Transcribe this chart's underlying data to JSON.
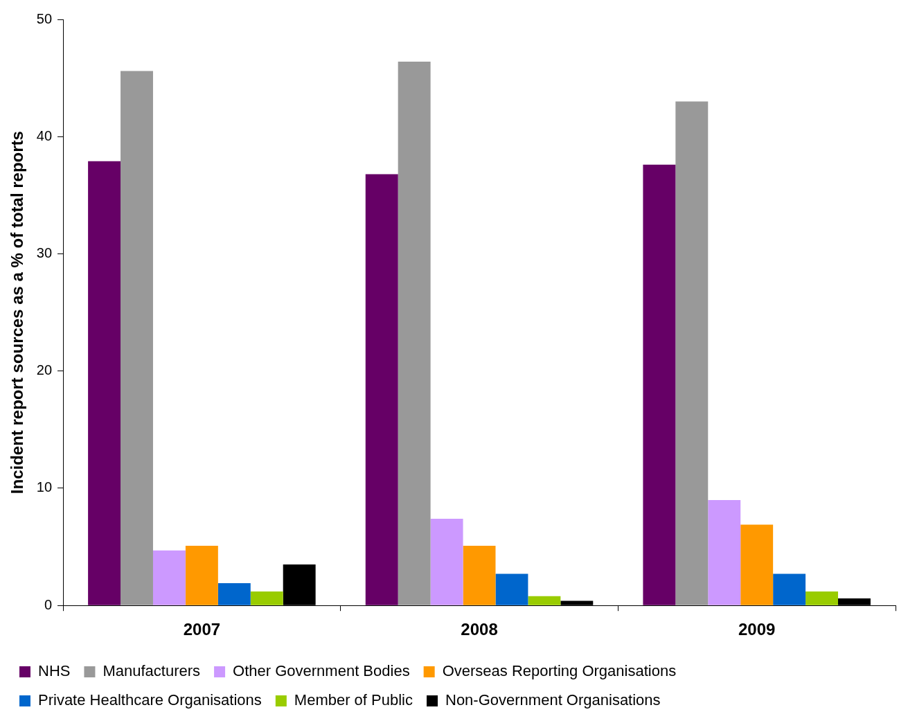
{
  "chart_data": {
    "type": "bar",
    "ylabel": "Incident report sources as a % of total reports",
    "categories": [
      "2007",
      "2008",
      "2009"
    ],
    "ylim": [
      0,
      50
    ],
    "yticks": [
      0,
      10,
      20,
      30,
      40,
      50
    ],
    "legend": "bottom",
    "series": [
      {
        "name": "NHS",
        "color": "#660066",
        "values": [
          37.9,
          36.8,
          37.6
        ]
      },
      {
        "name": "Manufacturers",
        "color": "#999999",
        "values": [
          45.6,
          46.4,
          43.0
        ]
      },
      {
        "name": "Other Government Bodies",
        "color": "#cc99ff",
        "values": [
          4.7,
          7.4,
          9.0
        ]
      },
      {
        "name": "Overseas Reporting Organisations",
        "color": "#ff9900",
        "values": [
          5.1,
          5.1,
          6.9
        ]
      },
      {
        "name": "Private Healthcare Organisations",
        "color": "#0066cc",
        "values": [
          1.9,
          2.7,
          2.7
        ]
      },
      {
        "name": "Member of Public",
        "color": "#99cc00",
        "values": [
          1.2,
          0.8,
          1.2
        ]
      },
      {
        "name": "Non-Government Organisations",
        "color": "#000000",
        "values": [
          3.5,
          0.4,
          0.6
        ]
      }
    ]
  }
}
